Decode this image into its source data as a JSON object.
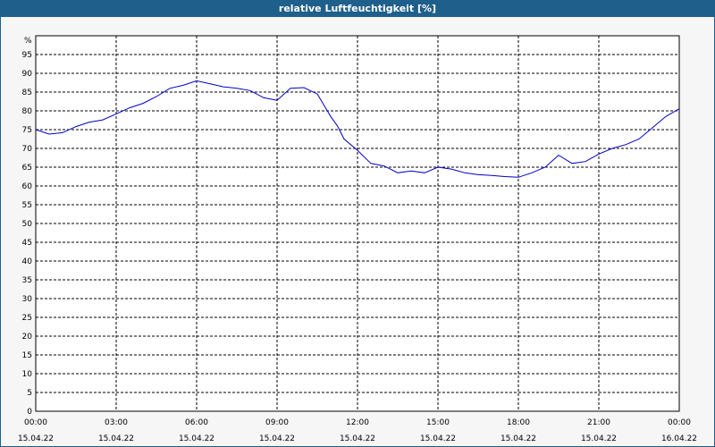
{
  "title": "relative Luftfeuchtigkeit [%]",
  "colors": {
    "titlebar": "#1f5f8b",
    "line": "#0000c8",
    "grid": "#000000",
    "background": "#ffffff"
  },
  "chart_data": {
    "type": "line",
    "title": "relative Luftfeuchtigkeit [%]",
    "ylabel": "%",
    "xlabel": "",
    "ylim": [
      0,
      100
    ],
    "yticks": [
      0,
      5,
      10,
      15,
      20,
      25,
      30,
      35,
      40,
      45,
      50,
      55,
      60,
      65,
      70,
      75,
      80,
      85,
      90,
      95
    ],
    "xlim": [
      "15.04.22 00:00",
      "16.04.22 00:00"
    ],
    "xtick_labels": [
      {
        "time": "00:00",
        "date": "15.04.22"
      },
      {
        "time": "03:00",
        "date": "15.04.22"
      },
      {
        "time": "06:00",
        "date": "15.04.22"
      },
      {
        "time": "09:00",
        "date": "15.04.22"
      },
      {
        "time": "12:00",
        "date": "15.04.22"
      },
      {
        "time": "15:00",
        "date": "15.04.22"
      },
      {
        "time": "18:00",
        "date": "15.04.22"
      },
      {
        "time": "21:00",
        "date": "15.04.22"
      },
      {
        "time": "00:00",
        "date": "16.04.22"
      }
    ],
    "grid": true,
    "series": [
      {
        "x": [
          "00:00",
          "00:30",
          "01:00",
          "01:30",
          "02:00",
          "02:30",
          "03:00",
          "03:30",
          "04:00",
          "04:30",
          "05:00",
          "05:30",
          "06:00",
          "06:30",
          "07:00",
          "07:30",
          "08:00",
          "08:30",
          "09:00",
          "09:30",
          "10:00",
          "10:30",
          "11:00",
          "11:15",
          "11:30",
          "12:00",
          "12:30",
          "13:00",
          "13:30",
          "14:00",
          "14:30",
          "15:00",
          "15:30",
          "16:00",
          "16:30",
          "17:00",
          "17:30",
          "18:00",
          "18:30",
          "19:00",
          "19:30",
          "20:00",
          "20:30",
          "21:00",
          "21:30",
          "22:00",
          "22:30",
          "23:00",
          "23:30",
          "23:59"
        ],
        "values": [
          75.0,
          73.8,
          74.2,
          75.8,
          77.0,
          77.6,
          79.2,
          80.8,
          82.0,
          83.8,
          86.0,
          86.8,
          88.0,
          87.2,
          86.4,
          86.0,
          85.4,
          83.5,
          82.8,
          86.0,
          86.2,
          84.5,
          78.5,
          76.0,
          72.5,
          69.5,
          66.0,
          65.3,
          63.5,
          64.0,
          63.5,
          65.0,
          64.5,
          63.5,
          63.0,
          62.8,
          62.5,
          62.3,
          63.5,
          65.0,
          68.2,
          66.0,
          66.5,
          68.5,
          70.0,
          71.0,
          72.5,
          75.5,
          78.5,
          80.5
        ]
      }
    ]
  }
}
